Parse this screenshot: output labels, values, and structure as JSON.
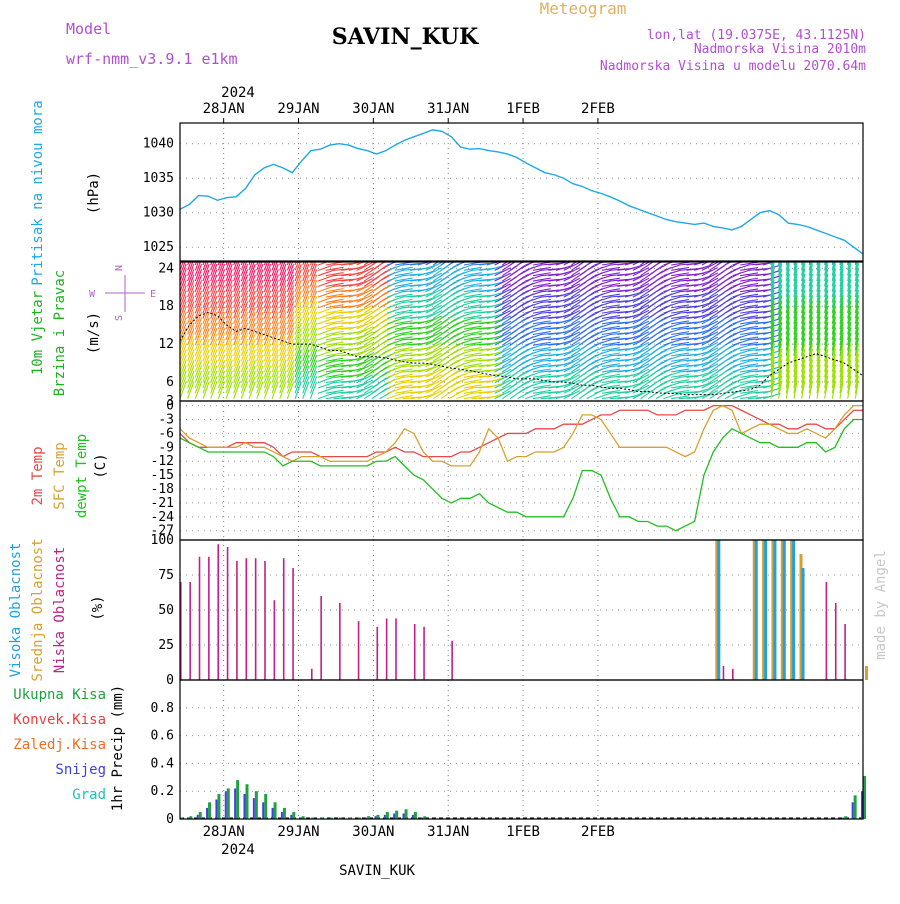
{
  "header": {
    "model_label": "Model",
    "model_name": "wrf-nmm_v3.9.1 e1km",
    "station": "SAVIN_KUK",
    "meteogram": "Meteogram",
    "lonlat": "lon,lat (19.0375E, 43.1125N)",
    "elev": "Nadmorska Visina 2010m",
    "elev_model": "Nadmorska Visina u modelu 2070.64m",
    "year_top": "2024",
    "year_bottom": "2024",
    "footer_station": "SAVIN_KUK",
    "credit": "made by Angel"
  },
  "colors": {
    "pressure": "#1ea8e8",
    "wind_label": "#20b020",
    "temp": "#e84848",
    "sfc": "#d8a030",
    "dewpt": "#20c020",
    "cloud_high": "#20a0e0",
    "cloud_mid": "#d8a030",
    "cloud_low": "#c0208a",
    "precip_total": "#20a040",
    "precip_conv": "#e84040",
    "precip_frz": "#f07020",
    "precip_snow": "#4040e0",
    "precip_hail": "#20c0c0",
    "rose": "#b060d0",
    "header_purple": "#b050d0",
    "meteogram": "#e0b060"
  },
  "labels": {
    "pressure": [
      "Pritisak na nivou mora",
      "(hPa)"
    ],
    "wind": [
      "10m Vjetar",
      "Brzina i Pravac",
      "(m/s)"
    ],
    "temp": [
      "2m Temp",
      "SFC Temp",
      "dewpt Temp",
      "(C)"
    ],
    "cloud": [
      "Visoka Oblacnost",
      "Srednja Oblacnost",
      "Niska Oblacnost",
      "(%)"
    ],
    "precip_legend": [
      "Ukupna Kisa",
      "Konvek.Kisa",
      "Zaledj.Kisa",
      "Snijeg",
      "Grad"
    ],
    "precip_axis": "1hr Precip (mm)",
    "rose": {
      "n": "N",
      "s": "S",
      "e": "E",
      "w": "W"
    }
  },
  "chart_data": [
    {
      "type": "line",
      "name": "pressure",
      "x_categories": [
        "28JAN",
        "29JAN",
        "30JAN",
        "31JAN",
        "1FEB",
        "2FEB"
      ],
      "x_hours": [
        0,
        3,
        6,
        9,
        12,
        15,
        18,
        21,
        24,
        27,
        30,
        33,
        36,
        39,
        42,
        45,
        48,
        51,
        54,
        57,
        60,
        63,
        66,
        69,
        72,
        75,
        78,
        81,
        84,
        87,
        90,
        93,
        96,
        99,
        102,
        105,
        108,
        111,
        114,
        117,
        120,
        123,
        126,
        129,
        132,
        135,
        138,
        141,
        144,
        147,
        150,
        153,
        156,
        159,
        162,
        165,
        168,
        171,
        174,
        177,
        180,
        183,
        186,
        189,
        192,
        195,
        198,
        201,
        204,
        207,
        210,
        213,
        216,
        219
      ],
      "y": [
        1030.5,
        1031.2,
        1032.5,
        1032.4,
        1031.8,
        1032.2,
        1032.3,
        1033.5,
        1035.5,
        1036.5,
        1037.0,
        1036.5,
        1035.8,
        1037.5,
        1039.0,
        1039.2,
        1039.8,
        1040.0,
        1039.8,
        1039.3,
        1039.0,
        1038.5,
        1039.0,
        1039.8,
        1040.5,
        1041.0,
        1041.5,
        1042.0,
        1041.8,
        1041.0,
        1039.5,
        1039.2,
        1039.3,
        1039.0,
        1038.8,
        1038.5,
        1038.0,
        1037.2,
        1036.5,
        1035.8,
        1035.5,
        1035.0,
        1034.2,
        1033.8,
        1033.2,
        1032.8,
        1032.3,
        1031.7,
        1031.0,
        1030.5,
        1030.0,
        1029.5,
        1029.0,
        1028.7,
        1028.5,
        1028.3,
        1028.5,
        1028.0,
        1027.8,
        1027.5,
        1028.0,
        1029.0,
        1030.0,
        1030.3,
        1029.7,
        1028.5,
        1028.3,
        1028.0,
        1027.5,
        1027.0,
        1026.5,
        1026.0,
        1025.0,
        1024.0
      ],
      "ylim": [
        1023,
        1043
      ],
      "y_ticks": [
        1025,
        1030,
        1035,
        1040
      ]
    },
    {
      "type": "line",
      "name": "wind_speed",
      "x_hours": [
        0,
        3,
        6,
        9,
        12,
        15,
        18,
        21,
        24,
        27,
        30,
        33,
        36,
        39,
        42,
        45,
        48,
        51,
        54,
        57,
        60,
        63,
        66,
        69,
        72,
        75,
        78,
        81,
        84,
        87,
        90,
        93,
        96,
        99,
        102,
        105,
        108,
        111,
        114,
        117,
        120,
        123,
        126,
        129,
        132,
        135,
        138,
        141,
        144,
        147,
        150,
        153,
        156,
        159,
        162,
        165,
        168,
        171,
        174,
        177,
        180,
        183,
        186,
        189,
        192,
        195,
        198,
        201,
        204,
        207,
        210,
        213,
        216,
        219
      ],
      "y": [
        12.5,
        15.0,
        16.5,
        17.0,
        16.5,
        15.0,
        14.0,
        14.5,
        14.0,
        13.5,
        13.0,
        12.5,
        12.0,
        12.0,
        12.0,
        11.5,
        11.0,
        11.0,
        10.5,
        10.0,
        10.0,
        10.0,
        9.8,
        9.5,
        9.2,
        9.0,
        9.0,
        8.8,
        8.5,
        8.2,
        8.0,
        7.8,
        7.5,
        7.2,
        7.0,
        6.8,
        6.5,
        6.5,
        6.5,
        6.2,
        6.0,
        6.0,
        5.8,
        5.5,
        5.5,
        5.2,
        5.0,
        5.0,
        4.8,
        4.5,
        4.5,
        4.3,
        4.2,
        4.2,
        4.0,
        4.0,
        4.0,
        4.0,
        4.2,
        4.4,
        4.6,
        4.8,
        5.5,
        7.0,
        8.0,
        9.0,
        9.5,
        10.0,
        10.5,
        10.0,
        9.5,
        9.0,
        8.0,
        7.0
      ],
      "ylim": [
        3,
        25
      ],
      "y_ticks": [
        3,
        6,
        12,
        18,
        24
      ]
    },
    {
      "type": "line",
      "name": "temperature",
      "x_hours": [
        0,
        3,
        6,
        9,
        12,
        15,
        18,
        21,
        24,
        27,
        30,
        33,
        36,
        39,
        42,
        45,
        48,
        51,
        54,
        57,
        60,
        63,
        66,
        69,
        72,
        75,
        78,
        81,
        84,
        87,
        90,
        93,
        96,
        99,
        102,
        105,
        108,
        111,
        114,
        117,
        120,
        123,
        126,
        129,
        132,
        135,
        138,
        141,
        144,
        147,
        150,
        153,
        156,
        159,
        162,
        165,
        168,
        171,
        174,
        177,
        180,
        183,
        186,
        189,
        192,
        195,
        198,
        201,
        204,
        207,
        210,
        213,
        216,
        219
      ],
      "series": [
        {
          "name": "2m Temp",
          "y": [
            -6,
            -8,
            -9,
            -9,
            -9,
            -9,
            -8,
            -8,
            -8,
            -8,
            -9,
            -11,
            -10,
            -10,
            -10,
            -11,
            -11,
            -11,
            -11,
            -11,
            -11,
            -10,
            -10,
            -9,
            -10,
            -10,
            -11,
            -11,
            -11,
            -11,
            -10,
            -10,
            -9,
            -8,
            -7,
            -6,
            -6,
            -6,
            -5,
            -5,
            -5,
            -4,
            -4,
            -4,
            -3,
            -2,
            -2,
            -1,
            -1,
            -1,
            -1,
            -2,
            -2,
            -2,
            -1,
            -1,
            -1,
            0,
            0,
            0,
            -1,
            -2,
            -3,
            -4,
            -4,
            -5,
            -5,
            -4,
            -4,
            -5,
            -5,
            -3,
            -1,
            -1
          ]
        },
        {
          "name": "SFC Temp",
          "y": [
            -5,
            -7,
            -8,
            -9,
            -9,
            -9,
            -9,
            -8,
            -9,
            -9,
            -10,
            -11,
            -12,
            -11,
            -11,
            -11,
            -12,
            -12,
            -12,
            -12,
            -12,
            -11,
            -10,
            -8,
            -5,
            -6,
            -10,
            -12,
            -12,
            -13,
            -13,
            -13,
            -10,
            -5,
            -7,
            -12,
            -11,
            -11,
            -10,
            -10,
            -10,
            -9,
            -6,
            -2,
            -2,
            -3,
            -6,
            -9,
            -9,
            -9,
            -9,
            -9,
            -9,
            -10,
            -11,
            -10,
            -5,
            -1,
            0,
            -1,
            -6,
            -5,
            -4,
            -4,
            -5,
            -6,
            -6,
            -5,
            -6,
            -7,
            -5,
            -2,
            0,
            0
          ]
        },
        {
          "name": "dewpt Temp",
          "y": [
            -7,
            -8,
            -9,
            -10,
            -10,
            -10,
            -10,
            -10,
            -10,
            -10,
            -11,
            -13,
            -12,
            -12,
            -12,
            -13,
            -13,
            -13,
            -13,
            -13,
            -13,
            -12,
            -12,
            -11,
            -13,
            -15,
            -16,
            -18,
            -20,
            -21,
            -20,
            -20,
            -19,
            -21,
            -22,
            -23,
            -23,
            -24,
            -24,
            -24,
            -24,
            -24,
            -20,
            -14,
            -14,
            -15,
            -20,
            -24,
            -24,
            -25,
            -25,
            -26,
            -26,
            -27,
            -26,
            -25,
            -15,
            -10,
            -7,
            -5,
            -6,
            -7,
            -8,
            -8,
            -9,
            -9,
            -9,
            -8,
            -8,
            -10,
            -9,
            -5,
            -3,
            -3
          ]
        }
      ],
      "ylim": [
        -29,
        1
      ],
      "y_ticks": [
        0,
        -3,
        -6,
        -9,
        -12,
        -15,
        -18,
        -21,
        -24,
        -27
      ]
    },
    {
      "type": "bar",
      "name": "cloud_cover",
      "x_hours": [
        0,
        3,
        6,
        9,
        12,
        15,
        18,
        21,
        24,
        27,
        30,
        33,
        36,
        39,
        42,
        45,
        48,
        51,
        54,
        57,
        60,
        63,
        66,
        69,
        72,
        75,
        78,
        81,
        84,
        87,
        90,
        93,
        96,
        99,
        102,
        105,
        108,
        111,
        114,
        117,
        120,
        123,
        126,
        129,
        132,
        135,
        138,
        141,
        144,
        147,
        150,
        153,
        156,
        159,
        162,
        165,
        168,
        171,
        174,
        177,
        180,
        183,
        186,
        189,
        192,
        195,
        198,
        201,
        204,
        207,
        210,
        213,
        216,
        219
      ],
      "series": [
        {
          "name": "Niska Oblacnost",
          "values": [
            70,
            70,
            88,
            88,
            97,
            95,
            85,
            87,
            87,
            85,
            57,
            87,
            80,
            0,
            8,
            60,
            0,
            55,
            0,
            42,
            0,
            38,
            44,
            44,
            0,
            40,
            38,
            0,
            0,
            28,
            0,
            0,
            0,
            0,
            0,
            0,
            0,
            0,
            0,
            0,
            0,
            0,
            0,
            0,
            0,
            0,
            0,
            0,
            0,
            0,
            0,
            0,
            0,
            0,
            0,
            0,
            0,
            0,
            10,
            8,
            0,
            0,
            0,
            0,
            0,
            0,
            0,
            0,
            0,
            70,
            55,
            40,
            0,
            0
          ]
        },
        {
          "name": "Srednja Oblacnost",
          "values": [
            0,
            0,
            0,
            0,
            0,
            0,
            0,
            0,
            0,
            0,
            0,
            0,
            0,
            0,
            0,
            0,
            0,
            0,
            0,
            0,
            0,
            0,
            0,
            0,
            0,
            0,
            0,
            0,
            0,
            0,
            0,
            0,
            0,
            0,
            0,
            0,
            0,
            0,
            0,
            0,
            0,
            0,
            0,
            0,
            0,
            0,
            0,
            0,
            0,
            0,
            0,
            0,
            0,
            0,
            0,
            0,
            0,
            100,
            0,
            0,
            0,
            100,
            100,
            100,
            100,
            100,
            90,
            0,
            0,
            0,
            0,
            0,
            0,
            10
          ]
        },
        {
          "name": "Visoka Oblacnost",
          "values": [
            0,
            0,
            0,
            0,
            0,
            0,
            0,
            0,
            0,
            0,
            0,
            0,
            0,
            0,
            0,
            0,
            0,
            0,
            0,
            0,
            0,
            0,
            0,
            0,
            0,
            0,
            0,
            0,
            0,
            0,
            0,
            0,
            0,
            0,
            0,
            0,
            0,
            0,
            0,
            0,
            0,
            0,
            0,
            0,
            0,
            0,
            0,
            0,
            0,
            0,
            0,
            0,
            0,
            0,
            0,
            0,
            0,
            100,
            0,
            0,
            0,
            100,
            100,
            100,
            100,
            100,
            80,
            0,
            0,
            0,
            0,
            0,
            0,
            0
          ]
        }
      ],
      "ylim": [
        0,
        100
      ],
      "y_ticks": [
        0,
        25,
        50,
        75,
        100
      ]
    },
    {
      "type": "bar",
      "name": "precip_1hr",
      "x_hours": [
        0,
        3,
        6,
        9,
        12,
        15,
        18,
        21,
        24,
        27,
        30,
        33,
        36,
        39,
        42,
        45,
        48,
        51,
        54,
        57,
        60,
        63,
        66,
        69,
        72,
        75,
        78,
        81,
        84,
        87,
        90,
        93,
        96,
        99,
        102,
        105,
        108,
        111,
        114,
        117,
        120,
        123,
        126,
        129,
        132,
        135,
        138,
        141,
        144,
        147,
        150,
        153,
        156,
        159,
        162,
        165,
        168,
        171,
        174,
        177,
        180,
        183,
        186,
        189,
        192,
        195,
        198,
        201,
        204,
        207,
        210,
        213,
        216,
        219
      ],
      "series": [
        {
          "name": "Ukupna Kisa",
          "values": [
            0.01,
            0.02,
            0.05,
            0.12,
            0.18,
            0.22,
            0.28,
            0.25,
            0.2,
            0.18,
            0.12,
            0.08,
            0.05,
            0.02,
            0.01,
            0.01,
            0.01,
            0.01,
            0.01,
            0.01,
            0.02,
            0.03,
            0.05,
            0.06,
            0.07,
            0.05,
            0.02,
            0,
            0,
            0,
            0,
            0,
            0,
            0,
            0,
            0,
            0,
            0,
            0,
            0,
            0,
            0,
            0,
            0,
            0,
            0,
            0,
            0,
            0,
            0,
            0,
            0,
            0,
            0,
            0,
            0,
            0,
            0,
            0,
            0,
            0,
            0,
            0,
            0,
            0,
            0,
            0,
            0,
            0,
            0,
            0,
            0.02,
            0.17,
            0.31
          ]
        },
        {
          "name": "Snijeg",
          "values": [
            0,
            0.01,
            0.03,
            0.08,
            0.14,
            0.2,
            0.22,
            0.18,
            0.15,
            0.12,
            0.08,
            0.05,
            0.03,
            0.01,
            0,
            0,
            0,
            0,
            0,
            0,
            0.01,
            0.02,
            0.03,
            0.04,
            0.04,
            0.03,
            0.01,
            0,
            0,
            0,
            0,
            0,
            0,
            0,
            0,
            0,
            0,
            0,
            0,
            0,
            0,
            0,
            0,
            0,
            0,
            0,
            0,
            0,
            0,
            0,
            0,
            0,
            0,
            0,
            0,
            0,
            0,
            0,
            0,
            0,
            0,
            0,
            0,
            0,
            0,
            0,
            0,
            0,
            0,
            0,
            0,
            0.01,
            0.12,
            0.2
          ]
        }
      ],
      "ylim": [
        0,
        1.0
      ],
      "y_ticks": [
        0,
        0.2,
        0.4,
        0.6,
        0.8
      ]
    }
  ]
}
